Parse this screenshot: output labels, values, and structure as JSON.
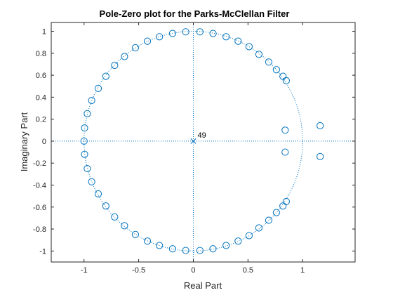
{
  "chart_data": {
    "type": "scatter",
    "title": "Pole-Zero plot for the Parks-McClellan Filter",
    "xlabel": "Real Part",
    "ylabel": "Imaginary Part",
    "xlim": [
      -1.3,
      1.48
    ],
    "ylim": [
      -1.1,
      1.08
    ],
    "xticks": [
      -1,
      -0.5,
      0,
      0.5,
      1
    ],
    "xtick_labels": [
      "-1",
      "-0.5",
      "0",
      "0.5",
      "1"
    ],
    "yticks": [
      -1,
      -0.8,
      -0.6,
      -0.4,
      -0.2,
      0,
      0.2,
      0.4,
      0.6,
      0.8,
      1
    ],
    "ytick_labels": [
      "-1",
      "-0.8",
      "-0.6",
      "-0.4",
      "-0.2",
      "0",
      "0.2",
      "0.4",
      "0.6",
      "0.8",
      "1"
    ],
    "grid": false,
    "unit_circle": true,
    "color": "#0072BD",
    "zeros": {
      "marker": "circle",
      "x": [
        0.06,
        0.18,
        0.3,
        0.41,
        0.51,
        0.6,
        0.69,
        0.76,
        0.82,
        0.85,
        0.84,
        0.84,
        0.85,
        0.82,
        0.76,
        0.69,
        0.6,
        0.51,
        0.41,
        0.3,
        0.18,
        0.06,
        -0.07,
        -0.19,
        -0.31,
        -0.42,
        -0.53,
        -0.63,
        -0.72,
        -0.8,
        -0.87,
        -0.93,
        -0.97,
        -0.995,
        -1.0,
        -0.995,
        -0.97,
        -0.93,
        -0.87,
        -0.8,
        -0.72,
        -0.63,
        -0.53,
        -0.42,
        -0.31,
        -0.19,
        -0.07,
        1.16,
        1.16
      ],
      "y": [
        0.995,
        0.98,
        0.95,
        0.91,
        0.86,
        0.79,
        0.72,
        0.65,
        0.59,
        0.55,
        0.1,
        -0.1,
        -0.55,
        -0.59,
        -0.65,
        -0.72,
        -0.79,
        -0.86,
        -0.91,
        -0.95,
        -0.98,
        -0.995,
        0.995,
        0.98,
        0.95,
        0.91,
        0.85,
        0.77,
        0.69,
        0.59,
        0.48,
        0.37,
        0.25,
        0.12,
        0.0,
        -0.12,
        -0.25,
        -0.37,
        -0.48,
        -0.59,
        -0.69,
        -0.77,
        -0.85,
        -0.91,
        -0.95,
        -0.98,
        -0.995,
        0.14,
        -0.14
      ]
    },
    "poles": {
      "marker": "x",
      "x": [
        0
      ],
      "y": [
        0
      ],
      "multiplicity_label": "49"
    }
  }
}
